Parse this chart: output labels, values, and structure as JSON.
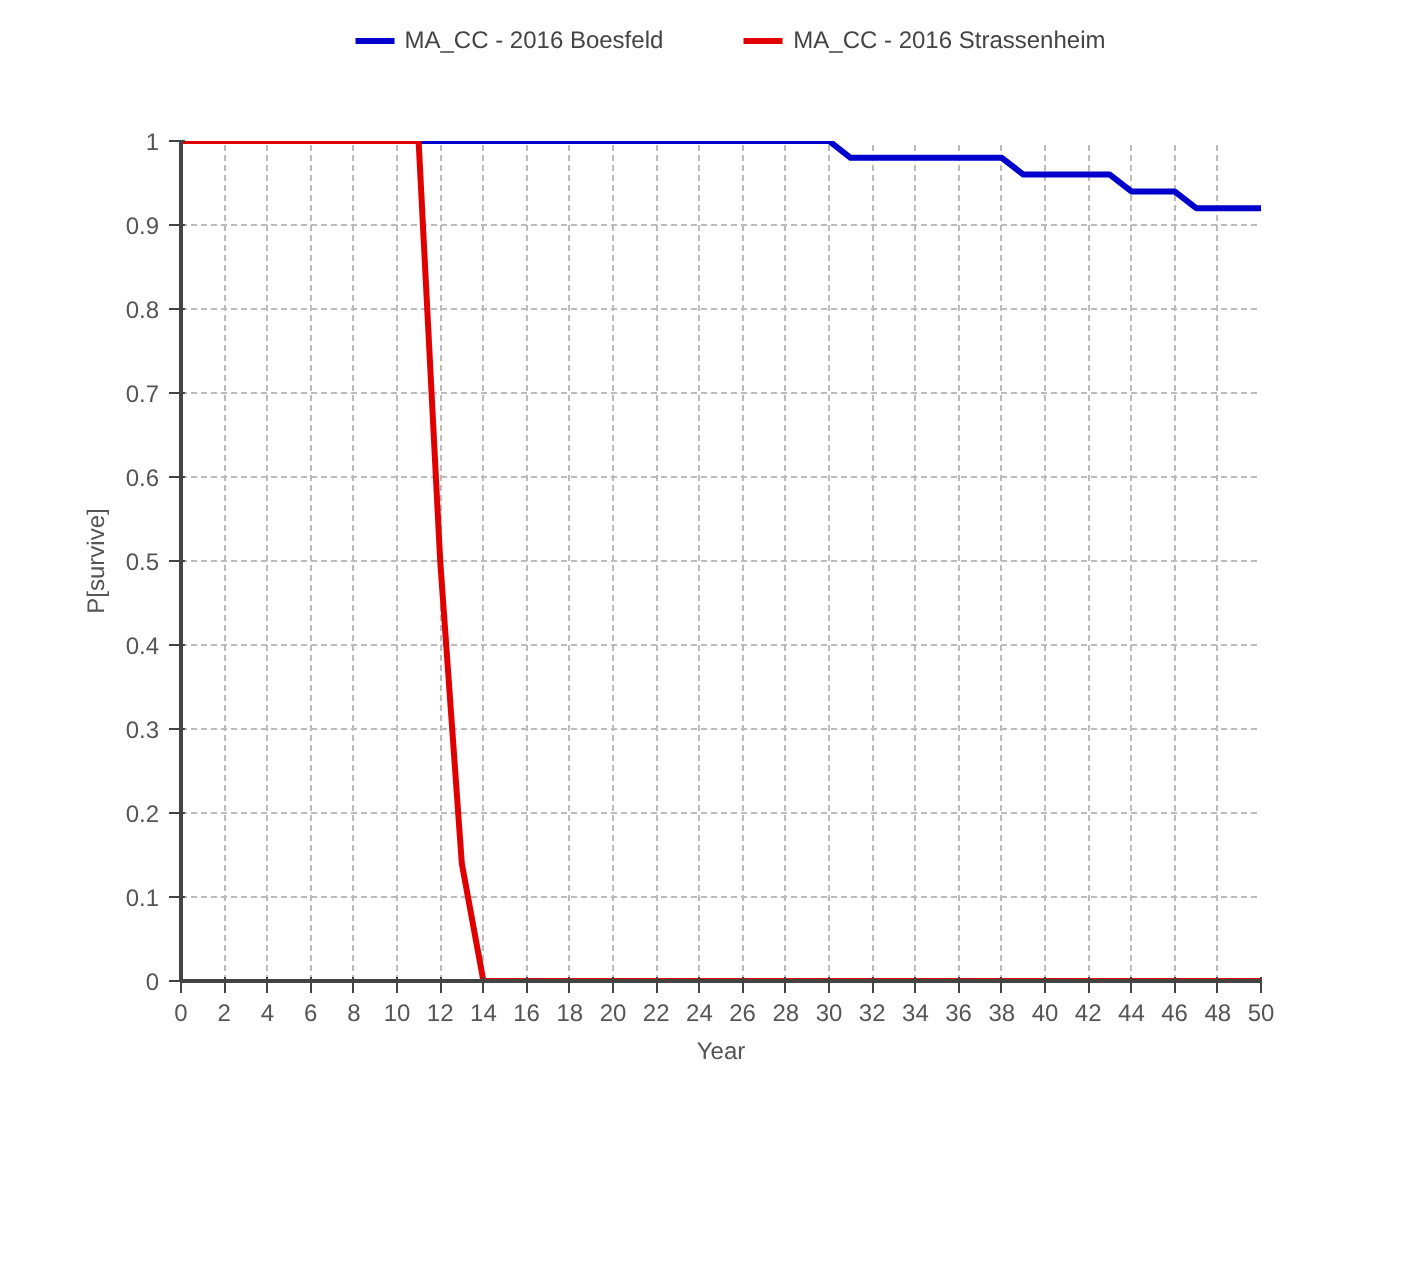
{
  "chart_data": {
    "type": "line",
    "xlabel": "Year",
    "ylabel": "P[survive]",
    "xlim": [
      0,
      50
    ],
    "ylim": [
      0,
      1
    ],
    "xticks": [
      0,
      2,
      4,
      6,
      8,
      10,
      12,
      14,
      16,
      18,
      20,
      22,
      24,
      26,
      28,
      30,
      32,
      34,
      36,
      38,
      40,
      42,
      44,
      46,
      48,
      50
    ],
    "yticks": [
      0,
      0.1,
      0.2,
      0.3,
      0.4,
      0.5,
      0.6,
      0.7,
      0.8,
      0.9,
      1
    ],
    "grid": true,
    "legend": "top",
    "line_style": "solid",
    "marker": "none",
    "series": [
      {
        "name": "MA_CC - 2016 Boesfeld",
        "color": "#0000cc",
        "x": [
          0,
          30,
          31,
          38,
          39,
          43,
          44,
          46,
          47,
          50
        ],
        "values": [
          1,
          1,
          0.98,
          0.98,
          0.96,
          0.96,
          0.94,
          0.94,
          0.92,
          0.92
        ]
      },
      {
        "name": "MA_CC - 2016 Strassenheim",
        "color": "#e00000",
        "x": [
          0,
          11,
          12,
          13,
          14,
          50
        ],
        "values": [
          1,
          1,
          0.5,
          0.14,
          0,
          0
        ]
      }
    ]
  }
}
